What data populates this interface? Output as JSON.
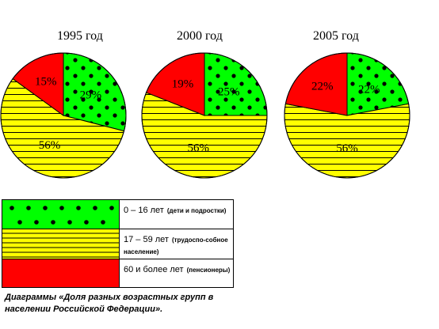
{
  "chart_data": {
    "type": "pie",
    "categories": [
      "0 – 16 лет",
      "17 – 59 лет",
      "60 и более лет"
    ],
    "colors": [
      "#00ff00",
      "#ffff00",
      "#ff0000"
    ],
    "patterns": [
      "dots",
      "horizontal-lines",
      "solid"
    ],
    "charts": [
      {
        "title": "1995 год",
        "values": [
          29,
          56,
          15
        ],
        "labels": [
          "29%",
          "56%",
          "15%"
        ]
      },
      {
        "title": "2000 год",
        "values": [
          25,
          56,
          19
        ],
        "labels": [
          "25%",
          "56%",
          "19%"
        ]
      },
      {
        "title": "2005 год",
        "values": [
          22,
          56,
          22
        ],
        "labels": [
          "22%",
          "56%",
          "22%"
        ]
      }
    ]
  },
  "legend": [
    {
      "label": "0 – 16 лет",
      "note": "(дети и подростки)",
      "color": "#00ff00",
      "pattern": "dots"
    },
    {
      "label": "17 – 59 лет",
      "note": "(трудоспо-собное население)",
      "color": "#ffff00",
      "pattern": "horizontal-lines"
    },
    {
      "label": "60 и более лет",
      "note": "(пенсионеры)",
      "color": "#ff0000",
      "pattern": "solid"
    }
  ],
  "caption": "Диаграммы «Доля разных возрастных групп в населении Российской Федерации»."
}
